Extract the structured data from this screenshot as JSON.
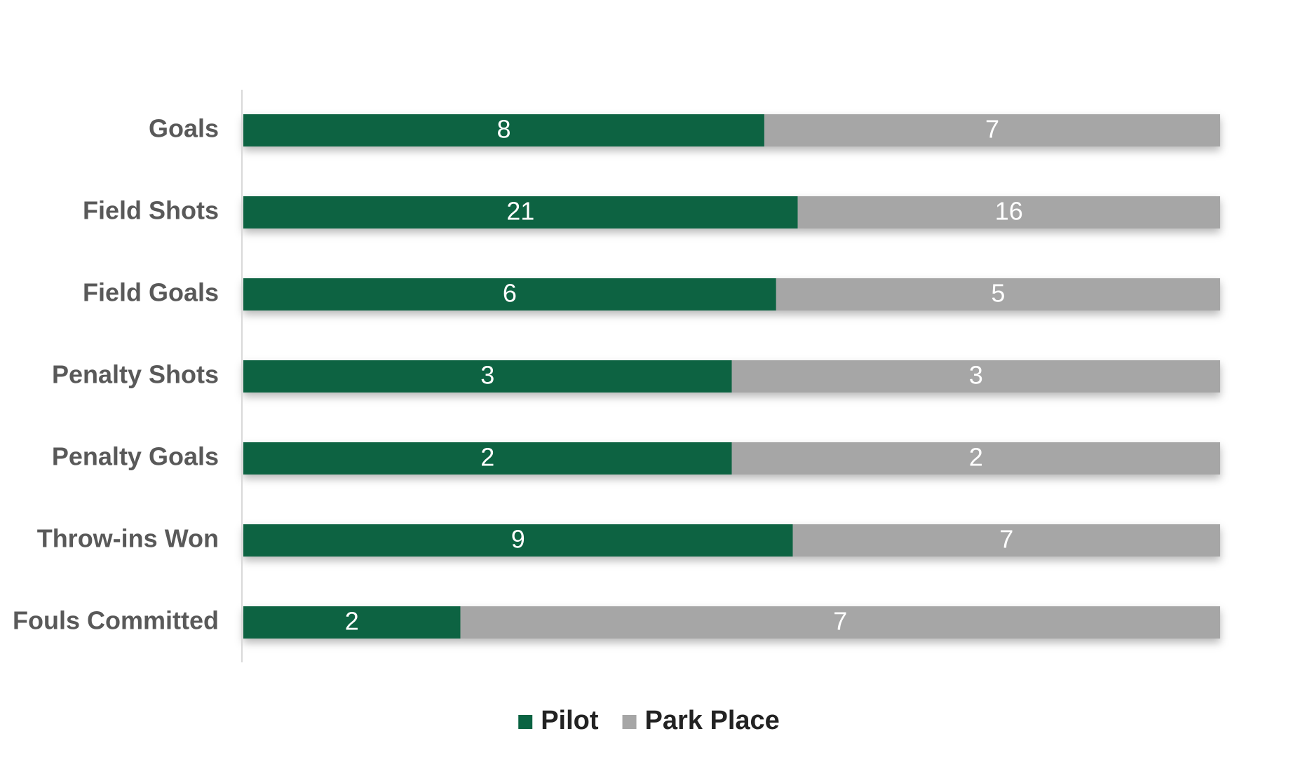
{
  "chart_data": {
    "type": "bar",
    "orientation": "horizontal",
    "stacking": "percent",
    "categories": [
      "Goals",
      "Field Shots",
      "Field Goals",
      "Penalty Shots",
      "Penalty Goals",
      "Throw-ins Won",
      "Fouls Committed"
    ],
    "series": [
      {
        "name": "Pilot",
        "color": "#0a6342",
        "values": [
          8,
          21,
          6,
          3,
          2,
          9,
          2
        ]
      },
      {
        "name": "Park Place",
        "color": "#a6a6a6",
        "values": [
          7,
          16,
          5,
          3,
          2,
          7,
          7
        ]
      }
    ],
    "data_labels": true,
    "grid": false,
    "legend_position": "bottom",
    "title": "",
    "xlabel": "",
    "ylabel": ""
  }
}
